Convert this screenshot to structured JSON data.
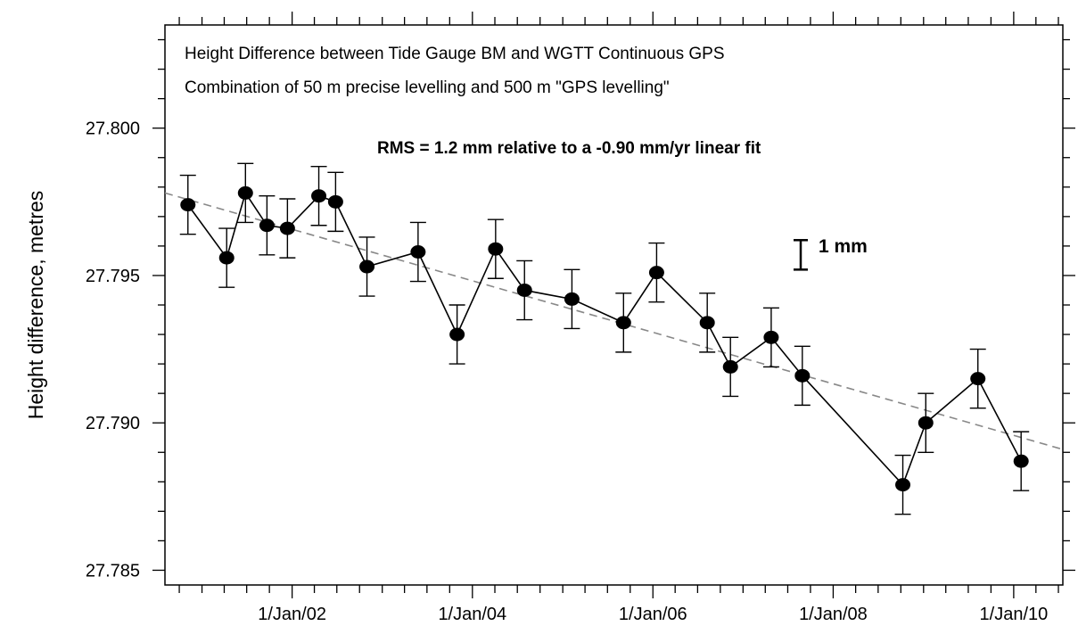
{
  "chart_data": {
    "type": "line",
    "title_lines": [
      "Height Difference between Tide Gauge BM and WGTT Continuous GPS",
      "Combination of 50 m precise levelling and 500 m \"GPS levelling\""
    ],
    "annotation": "RMS = 1.2 mm relative to a -0.90 mm/yr linear fit",
    "scale_bar_label": "1 mm",
    "scale_bar_mm": 1,
    "ylabel": "Height difference, metres",
    "xlabel": "",
    "ylim": [
      27.7845,
      27.8035
    ],
    "xlim": [
      "2000-08-04",
      "2010-07-19"
    ],
    "y_ticks": [
      "27.785",
      "27.790",
      "27.795",
      "27.800"
    ],
    "x_ticks": [
      "1/Jan/02",
      "1/Jan/04",
      "1/Jan/06",
      "1/Jan/08",
      "1/Jan/10"
    ],
    "x_tick_dates": [
      "2002-01-01",
      "2004-01-01",
      "2006-01-01",
      "2008-01-01",
      "2010-01-01"
    ],
    "grid": false,
    "series": [
      {
        "points": [
          {
            "x": "2000-11-05",
            "y": 27.7974,
            "err": 0.001
          },
          {
            "x": "2001-04-11",
            "y": 27.7956,
            "err": 0.001
          },
          {
            "x": "2001-06-26",
            "y": 27.7978,
            "err": 0.001
          },
          {
            "x": "2001-09-21",
            "y": 27.7967,
            "err": 0.001
          },
          {
            "x": "2001-12-13",
            "y": 27.7966,
            "err": 0.001
          },
          {
            "x": "2002-04-19",
            "y": 27.7977,
            "err": 0.001
          },
          {
            "x": "2002-06-26",
            "y": 27.7975,
            "err": 0.001
          },
          {
            "x": "2002-10-31",
            "y": 27.7953,
            "err": 0.001
          },
          {
            "x": "2003-05-26",
            "y": 27.7958,
            "err": 0.001
          },
          {
            "x": "2003-10-31",
            "y": 27.793,
            "err": 0.001
          },
          {
            "x": "2004-04-04",
            "y": 27.7959,
            "err": 0.001
          },
          {
            "x": "2004-07-30",
            "y": 27.7945,
            "err": 0.001
          },
          {
            "x": "2005-02-07",
            "y": 27.7942,
            "err": 0.001
          },
          {
            "x": "2005-09-04",
            "y": 27.7934,
            "err": 0.001
          },
          {
            "x": "2006-01-16",
            "y": 27.7951,
            "err": 0.001
          },
          {
            "x": "2006-08-09",
            "y": 27.7934,
            "err": 0.001
          },
          {
            "x": "2006-11-11",
            "y": 27.7919,
            "err": 0.001
          },
          {
            "x": "2007-04-25",
            "y": 27.7929,
            "err": 0.001
          },
          {
            "x": "2007-08-29",
            "y": 27.7916,
            "err": 0.001
          },
          {
            "x": "2008-10-09",
            "y": 27.7879,
            "err": 0.001
          },
          {
            "x": "2009-01-10",
            "y": 27.79,
            "err": 0.001
          },
          {
            "x": "2009-08-09",
            "y": 27.7915,
            "err": 0.001
          },
          {
            "x": "2010-01-31",
            "y": 27.7887,
            "err": 0.001
          }
        ]
      }
    ],
    "trend_line": {
      "rate_mm_per_yr": -0.9,
      "points": [
        {
          "x": "2000-08-04",
          "y": 27.7978
        },
        {
          "x": "2010-07-19",
          "y": 27.7891
        }
      ]
    },
    "colors": {
      "markers": "#000000",
      "line": "#000000",
      "trend": "#888888"
    }
  }
}
